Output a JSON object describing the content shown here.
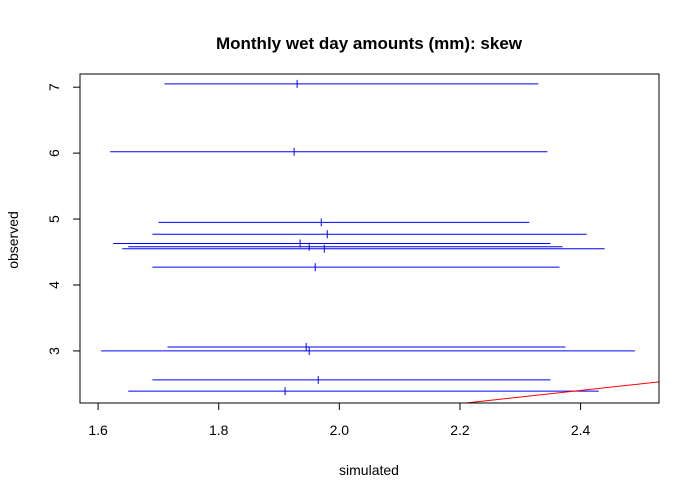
{
  "chart_data": {
    "type": "scatter",
    "title": "Monthly wet day amounts (mm): skew",
    "xlabel": "simulated",
    "ylabel": "observed",
    "xlim": [
      1.57,
      2.53
    ],
    "ylim": [
      2.21,
      7.2
    ],
    "x_ticks": [
      "1.6",
      "1.8",
      "2.0",
      "2.2",
      "2.4"
    ],
    "y_ticks": [
      "3",
      "4",
      "5",
      "6",
      "7"
    ],
    "grid": false,
    "legend": "none",
    "series": [
      {
        "style": "horizontal ranges with center mark",
        "color": "#0000ff",
        "values": [
          {
            "y": 7.05,
            "center": 1.93,
            "lo": 1.71,
            "hi": 2.33
          },
          {
            "y": 6.02,
            "center": 1.925,
            "lo": 1.62,
            "hi": 2.345
          },
          {
            "y": 4.95,
            "center": 1.97,
            "lo": 1.7,
            "hi": 2.315
          },
          {
            "y": 4.77,
            "center": 1.98,
            "lo": 1.69,
            "hi": 2.41
          },
          {
            "y": 4.63,
            "center": 1.935,
            "lo": 1.625,
            "hi": 2.35
          },
          {
            "y": 4.58,
            "center": 1.95,
            "lo": 1.65,
            "hi": 2.37
          },
          {
            "y": 4.55,
            "center": 1.975,
            "lo": 1.64,
            "hi": 2.44
          },
          {
            "y": 4.27,
            "center": 1.96,
            "lo": 1.69,
            "hi": 2.365
          },
          {
            "y": 3.06,
            "center": 1.945,
            "lo": 1.715,
            "hi": 2.375
          },
          {
            "y": 3.0,
            "center": 1.95,
            "lo": 1.605,
            "hi": 2.49
          },
          {
            "y": 2.56,
            "center": 1.965,
            "lo": 1.69,
            "hi": 2.35
          },
          {
            "y": 2.39,
            "center": 1.91,
            "lo": 1.65,
            "hi": 2.43
          }
        ]
      },
      {
        "style": "reference line (1:1)",
        "color": "#ff0000",
        "line": [
          [
            1.57,
            1.57
          ],
          [
            2.53,
            2.53
          ]
        ]
      }
    ]
  }
}
